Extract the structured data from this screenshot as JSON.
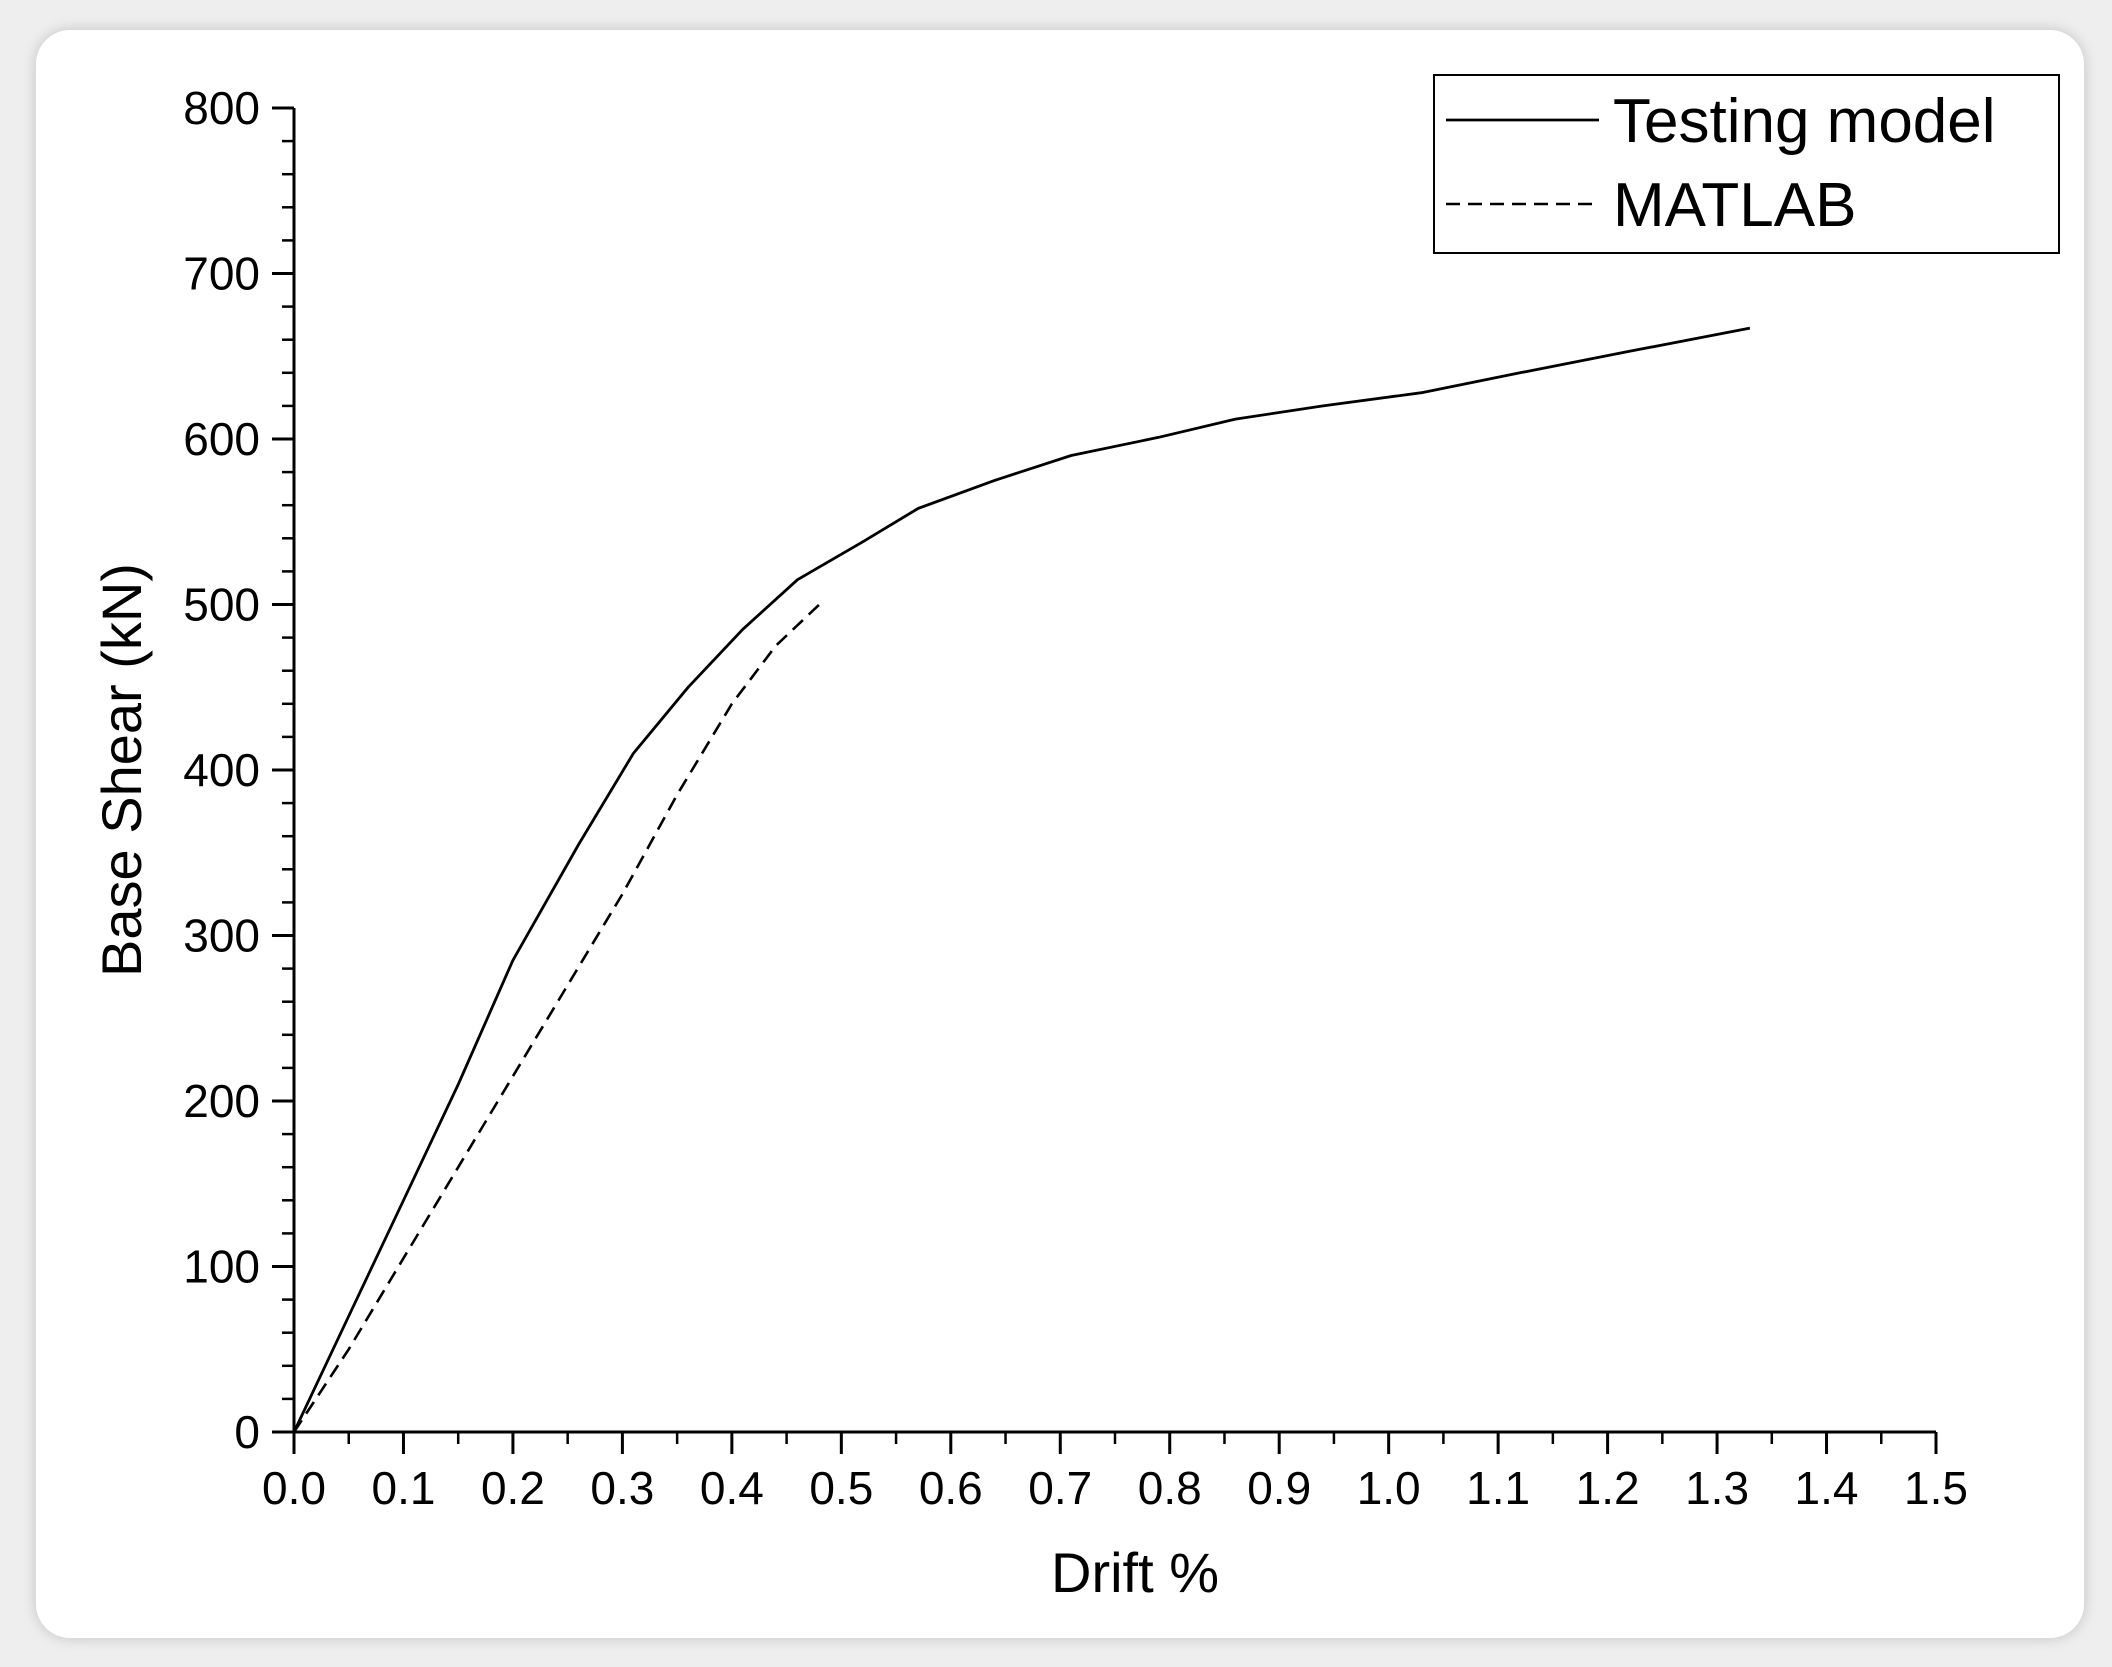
{
  "chart_data": {
    "type": "line",
    "xlabel": "Drift %",
    "ylabel": "Base Shear (kN)",
    "xlim": [
      0,
      1.5
    ],
    "ylim": [
      0,
      800
    ],
    "xticks": [
      "0.0",
      "0.1",
      "0.2",
      "0.3",
      "0.4",
      "0.5",
      "0.6",
      "0.7",
      "0.8",
      "0.9",
      "1.0",
      "1.1",
      "1.2",
      "1.3",
      "1.4",
      "1.5"
    ],
    "yticks": [
      "0",
      "100",
      "200",
      "300",
      "400",
      "500",
      "600",
      "700",
      "800"
    ],
    "grid": false,
    "legend_position": "top-right",
    "series": [
      {
        "name": "Testing model",
        "style": "solid",
        "x": [
          0.0,
          0.05,
          0.1,
          0.15,
          0.2,
          0.26,
          0.31,
          0.36,
          0.41,
          0.46,
          0.52,
          0.57,
          0.64,
          0.71,
          0.79,
          0.86,
          0.94,
          1.03,
          1.12,
          1.22,
          1.33
        ],
        "y": [
          0,
          70,
          140,
          210,
          285,
          355,
          410,
          450,
          485,
          515,
          538,
          558,
          575,
          590,
          601,
          612,
          620,
          628,
          640,
          653,
          667
        ]
      },
      {
        "name": "MATLAB",
        "style": "dashed",
        "x": [
          0.0,
          0.05,
          0.1,
          0.15,
          0.2,
          0.25,
          0.3,
          0.35,
          0.4,
          0.44,
          0.48
        ],
        "y": [
          0,
          50,
          105,
          160,
          215,
          270,
          325,
          385,
          440,
          475,
          500
        ]
      }
    ]
  }
}
